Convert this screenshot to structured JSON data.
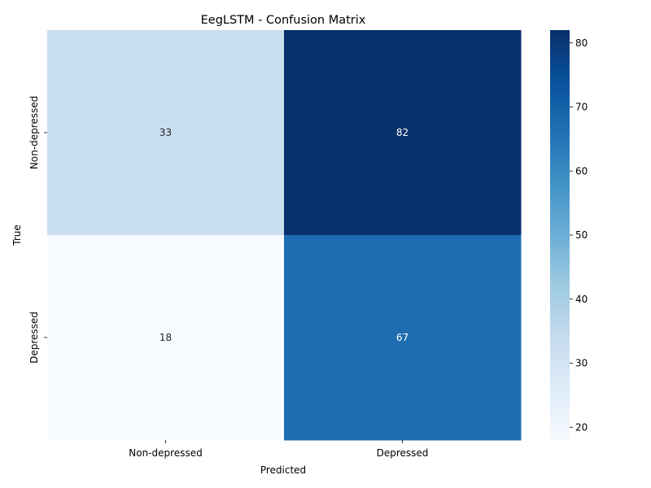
{
  "chart_data": {
    "type": "heatmap",
    "title": "EegLSTM - Confusion Matrix",
    "xlabel": "Predicted",
    "ylabel": "True",
    "x_categories": [
      "Non-depressed",
      "Depressed"
    ],
    "y_categories": [
      "Non-depressed",
      "Depressed"
    ],
    "matrix": [
      [
        33,
        82
      ],
      [
        18,
        67
      ]
    ],
    "colormap": "Blues",
    "colorbar": {
      "range": [
        18,
        82
      ],
      "ticks": [
        20,
        30,
        40,
        50,
        60,
        70,
        80
      ]
    }
  }
}
